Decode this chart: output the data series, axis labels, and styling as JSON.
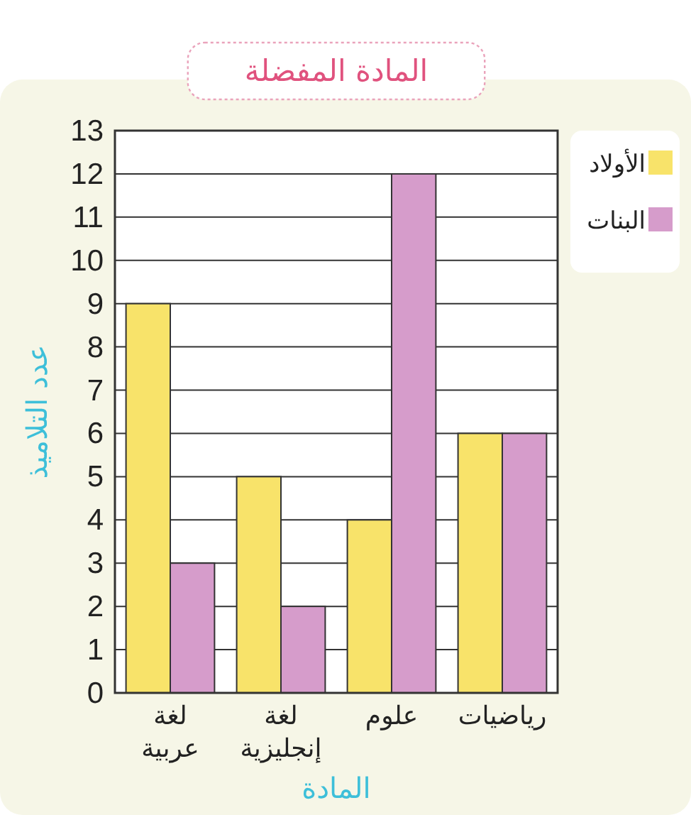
{
  "chart_data": {
    "type": "bar",
    "title": "المادة المفضلة",
    "xlabel": "المادة",
    "ylabel": "عدد التلاميذ",
    "categories": [
      "لغة عربية",
      "لغة إنجليزية",
      "علوم",
      "رياضيات"
    ],
    "series": [
      {
        "name": "الأولاد",
        "color": "#f8e36a",
        "values": [
          9,
          5,
          4,
          6
        ]
      },
      {
        "name": "البنات",
        "color": "#d69ccb",
        "values": [
          3,
          2,
          12,
          6
        ]
      }
    ],
    "ylim": [
      0,
      13
    ],
    "yticks": [
      0,
      1,
      2,
      3,
      4,
      5,
      6,
      7,
      8,
      9,
      10,
      11,
      12,
      13
    ],
    "grid": "y",
    "legend": "top right"
  }
}
